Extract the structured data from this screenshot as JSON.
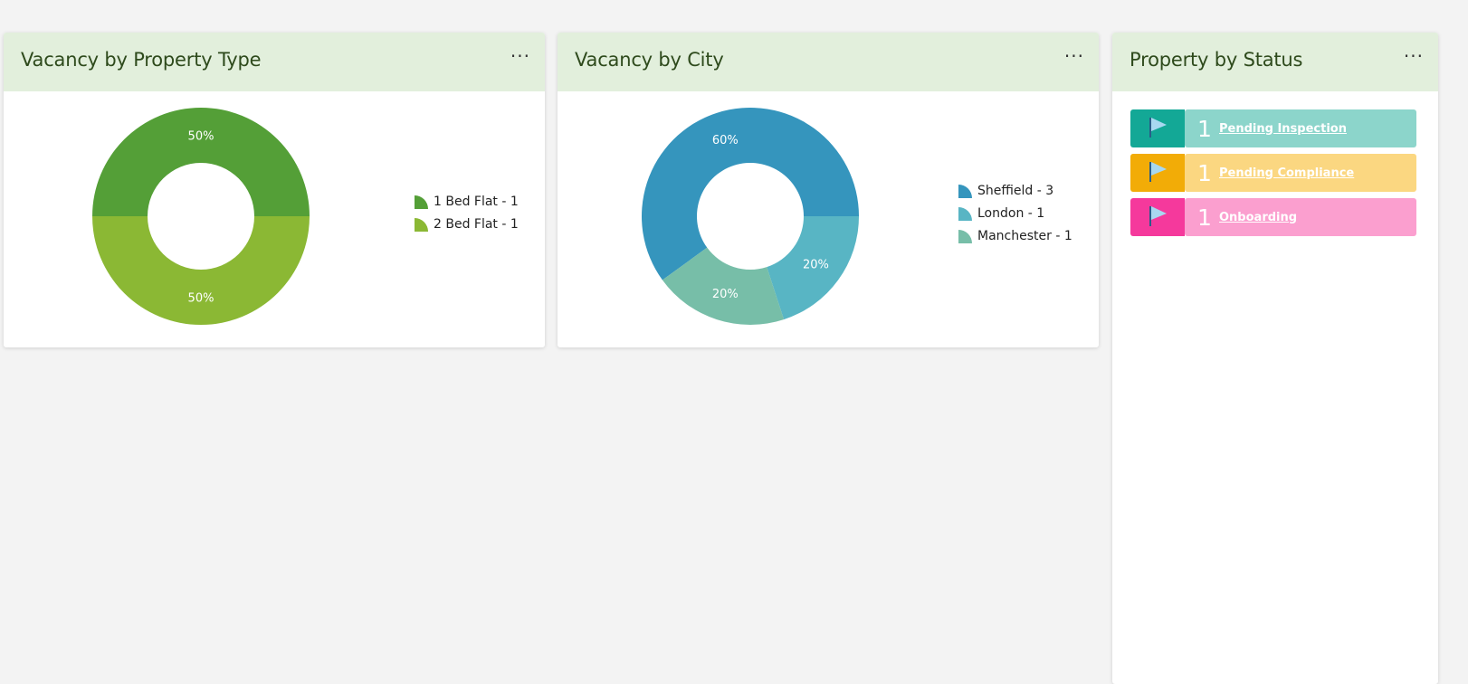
{
  "menu_label": "···",
  "cards": {
    "property_type": {
      "title": "Vacancy by Property Type",
      "legend": [
        "1 Bed Flat - 1",
        "2 Bed Flat - 1"
      ]
    },
    "city": {
      "title": "Vacancy by City",
      "legend": [
        "Sheffield - 3",
        "London - 1",
        "Manchester - 1"
      ]
    },
    "status": {
      "title": "Property by Status",
      "items": [
        {
          "count": "1",
          "label": "Pending Inspection",
          "dark": "#13a896",
          "light": "#8cd5cb"
        },
        {
          "count": "1",
          "label": "Pending Compliance",
          "dark": "#f2ac07",
          "light": "#fbd781"
        },
        {
          "count": "1",
          "label": "Onboarding",
          "dark": "#f5399c",
          "light": "#fb9fcf"
        }
      ]
    }
  },
  "chart_data": [
    {
      "type": "pie",
      "title": "Vacancy by Property Type",
      "categories": [
        "1 Bed Flat",
        "2 Bed Flat"
      ],
      "values": [
        1,
        1
      ],
      "percent_labels": [
        "50%",
        "50%"
      ],
      "colors": [
        "#549f37",
        "#8bb834"
      ],
      "donut": true,
      "legend_position": "right"
    },
    {
      "type": "pie",
      "title": "Vacancy by City",
      "categories": [
        "Sheffield",
        "London",
        "Manchester"
      ],
      "values": [
        3,
        1,
        1
      ],
      "percent_labels": [
        "60%",
        "20%",
        "20%"
      ],
      "colors": [
        "#3595bd",
        "#58b5c4",
        "#77bea8"
      ],
      "donut": true,
      "legend_position": "right"
    }
  ]
}
